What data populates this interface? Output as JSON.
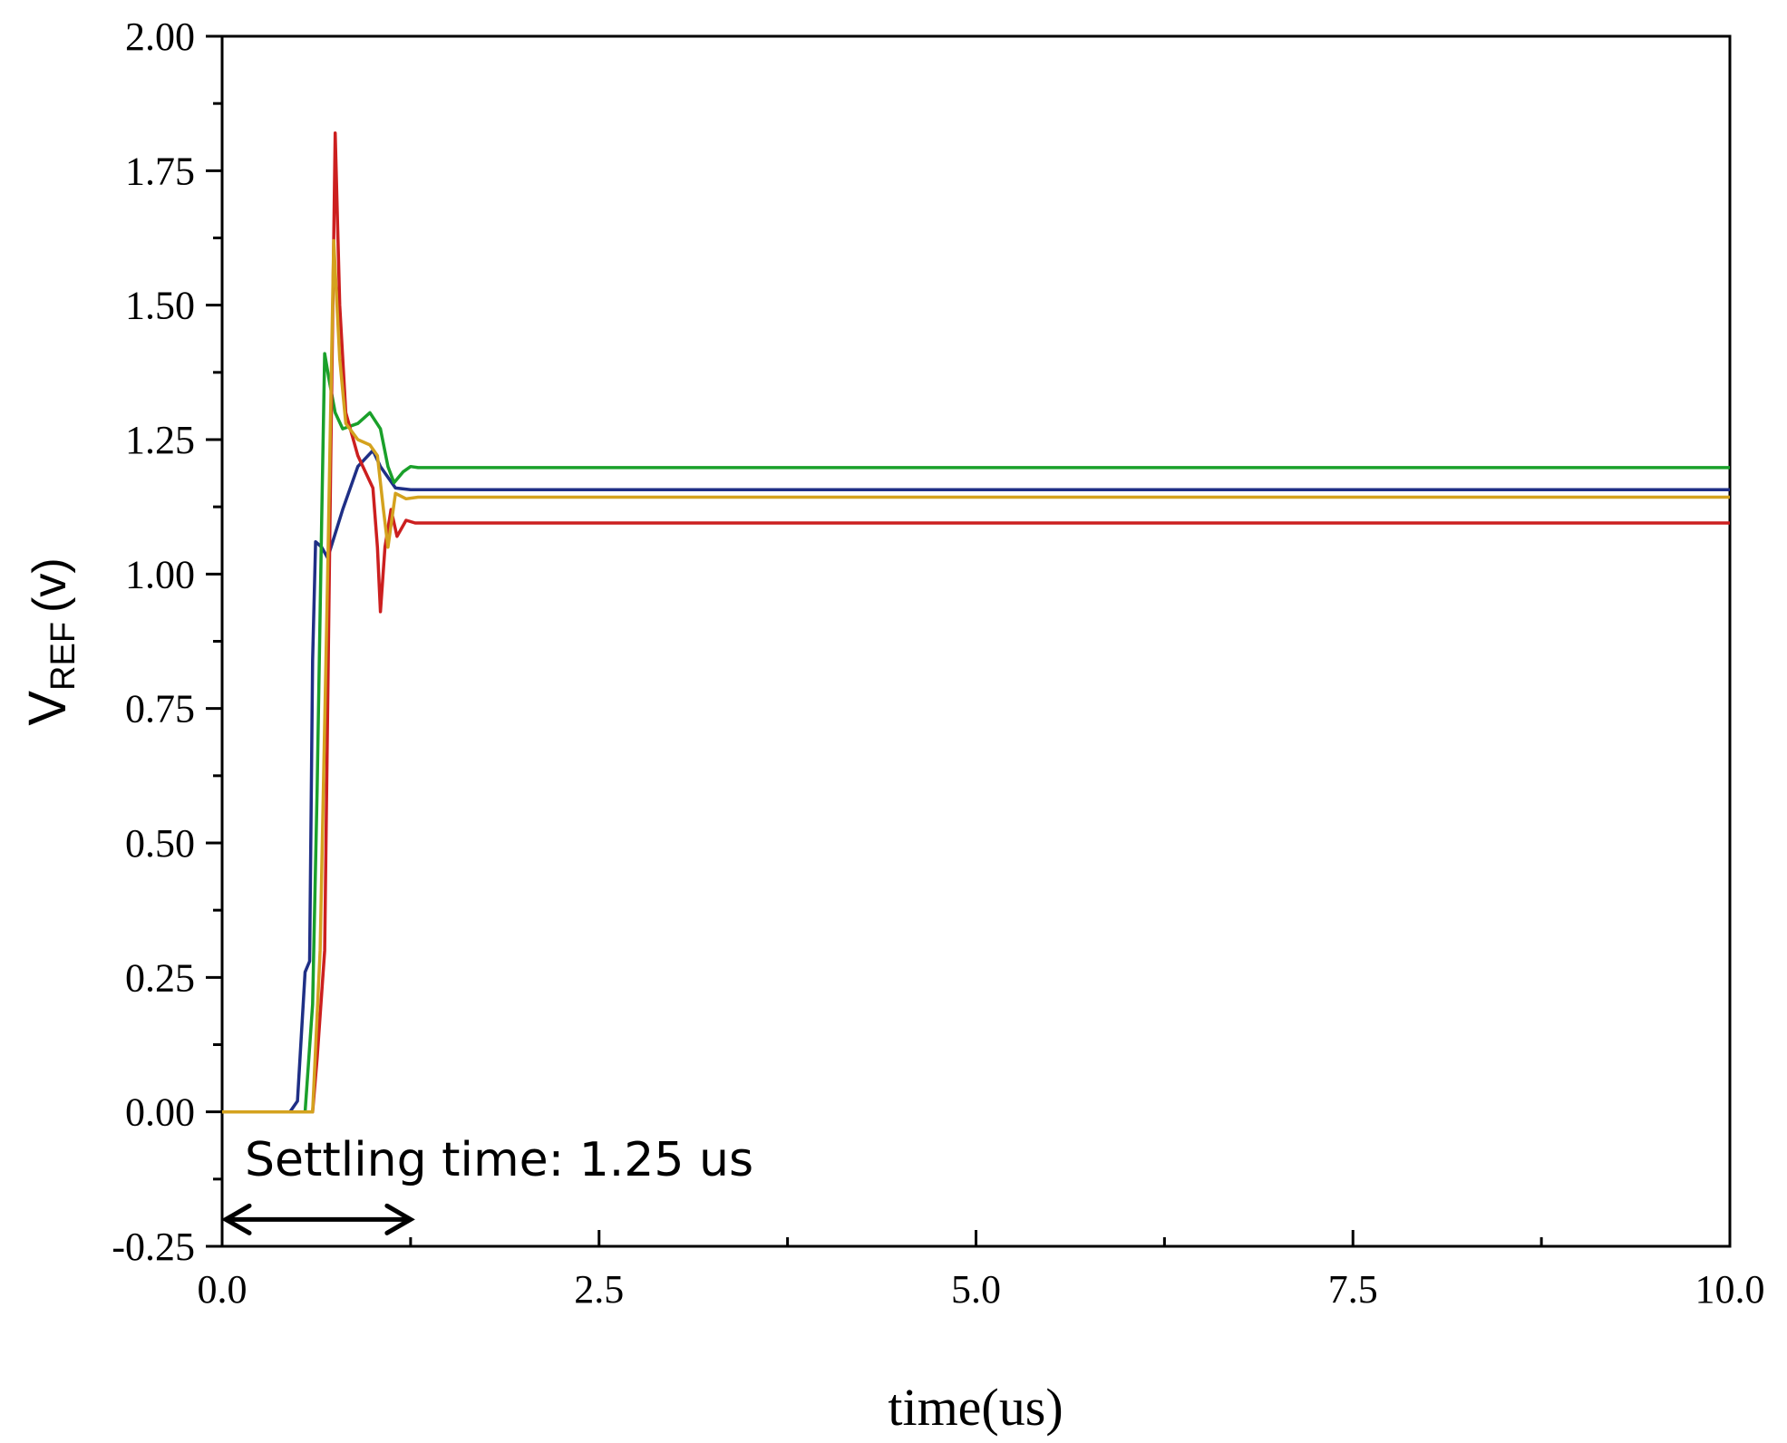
{
  "chart_data": {
    "type": "line",
    "xlabel": "time(us)",
    "ylabel_main": "V",
    "ylabel_sub": "REF",
    "ylabel_unit": "(v)",
    "xlim": [
      0,
      10
    ],
    "ylim": [
      -0.25,
      2.0
    ],
    "x_ticks": [
      0.0,
      2.5,
      5.0,
      7.5,
      10.0
    ],
    "x_tick_labels": [
      "0.0",
      "2.5",
      "5.0",
      "7.5",
      "10.0"
    ],
    "y_ticks": [
      -0.25,
      0.0,
      0.25,
      0.5,
      0.75,
      1.0,
      1.25,
      1.5,
      1.75,
      2.0
    ],
    "y_tick_labels": [
      "-0.25",
      "0.00",
      "0.25",
      "0.50",
      "0.75",
      "1.00",
      "1.25",
      "1.50",
      "1.75",
      "2.00"
    ],
    "grid": false,
    "annotation": {
      "text": "Settling time: 1.25 us",
      "arrow_from": 0.0,
      "arrow_to": 1.25,
      "arrow_y": -0.2
    },
    "series": [
      {
        "color": "#1f2f86",
        "points": [
          [
            0,
            0
          ],
          [
            0.2,
            0
          ],
          [
            0.45,
            0
          ],
          [
            0.5,
            0.02
          ],
          [
            0.55,
            0.26
          ],
          [
            0.58,
            0.28
          ],
          [
            0.6,
            0.84
          ],
          [
            0.62,
            1.06
          ],
          [
            0.66,
            1.05
          ],
          [
            0.7,
            1.03
          ],
          [
            0.8,
            1.12
          ],
          [
            0.9,
            1.2
          ],
          [
            1.0,
            1.23
          ],
          [
            1.05,
            1.2
          ],
          [
            1.15,
            1.16
          ],
          [
            1.25,
            1.157
          ],
          [
            2,
            1.157
          ],
          [
            5,
            1.157
          ],
          [
            10,
            1.157
          ]
        ]
      },
      {
        "color": "#1aa02a",
        "points": [
          [
            0,
            0
          ],
          [
            0.45,
            0
          ],
          [
            0.55,
            0
          ],
          [
            0.6,
            0.2
          ],
          [
            0.63,
            0.6
          ],
          [
            0.66,
            1.1
          ],
          [
            0.68,
            1.41
          ],
          [
            0.71,
            1.36
          ],
          [
            0.75,
            1.3
          ],
          [
            0.8,
            1.27
          ],
          [
            0.9,
            1.28
          ],
          [
            0.98,
            1.3
          ],
          [
            1.05,
            1.27
          ],
          [
            1.1,
            1.2
          ],
          [
            1.14,
            1.17
          ],
          [
            1.2,
            1.19
          ],
          [
            1.25,
            1.2
          ],
          [
            1.3,
            1.198
          ],
          [
            2,
            1.198
          ],
          [
            5,
            1.198
          ],
          [
            10,
            1.198
          ]
        ]
      },
      {
        "color": "#cc1f1f",
        "points": [
          [
            0,
            0
          ],
          [
            0.5,
            0
          ],
          [
            0.6,
            0
          ],
          [
            0.63,
            0.1
          ],
          [
            0.68,
            0.3
          ],
          [
            0.72,
            1.2
          ],
          [
            0.75,
            1.82
          ],
          [
            0.78,
            1.5
          ],
          [
            0.82,
            1.3
          ],
          [
            0.9,
            1.22
          ],
          [
            1.0,
            1.16
          ],
          [
            1.03,
            1.05
          ],
          [
            1.05,
            0.93
          ],
          [
            1.08,
            1.05
          ],
          [
            1.12,
            1.12
          ],
          [
            1.16,
            1.07
          ],
          [
            1.22,
            1.1
          ],
          [
            1.28,
            1.095
          ],
          [
            2,
            1.095
          ],
          [
            5,
            1.095
          ],
          [
            10,
            1.095
          ]
        ]
      },
      {
        "color": "#d4a21e",
        "points": [
          [
            0,
            0
          ],
          [
            0.5,
            0
          ],
          [
            0.6,
            0
          ],
          [
            0.65,
            0.3
          ],
          [
            0.7,
            1.0
          ],
          [
            0.74,
            1.62
          ],
          [
            0.78,
            1.4
          ],
          [
            0.82,
            1.28
          ],
          [
            0.9,
            1.25
          ],
          [
            0.98,
            1.24
          ],
          [
            1.03,
            1.22
          ],
          [
            1.07,
            1.12
          ],
          [
            1.1,
            1.05
          ],
          [
            1.15,
            1.15
          ],
          [
            1.22,
            1.14
          ],
          [
            1.3,
            1.143
          ],
          [
            2,
            1.143
          ],
          [
            5,
            1.143
          ],
          [
            10,
            1.143
          ]
        ]
      }
    ]
  }
}
